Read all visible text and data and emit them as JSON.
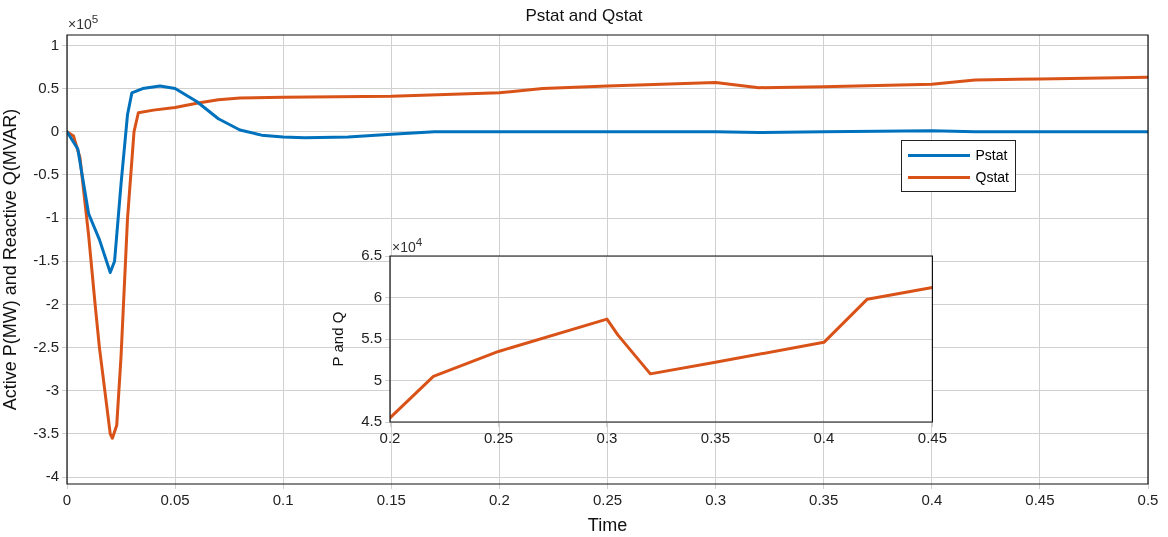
{
  "chart_data": [
    {
      "type": "line",
      "title": "Pstat and Qstat",
      "xlabel": "Time",
      "ylabel": "Active P(MW) and Reactive Q(MVAR)",
      "annotations": [
        "×10$^{5}$"
      ],
      "xlim": [
        0,
        0.5
      ],
      "xticks": [
        0,
        0.05,
        0.1,
        0.15,
        0.2,
        0.25,
        0.3,
        0.35,
        0.4,
        0.45,
        0.5
      ],
      "ylim": [
        -4.08,
        1.12
      ],
      "yticks": [
        -4,
        -3.5,
        -3,
        -2.5,
        -2,
        -1.5,
        -1,
        -0.5,
        0,
        0.5,
        1
      ],
      "grid": true,
      "legend": "right",
      "marker": "none",
      "line_style": "solid",
      "series": [
        {
          "name": "Pstat",
          "color": "#0072bd",
          "x": [
            0,
            0.005,
            0.01,
            0.015,
            0.02,
            0.022,
            0.025,
            0.028,
            0.03,
            0.035,
            0.043,
            0.05,
            0.06,
            0.07,
            0.08,
            0.09,
            0.1,
            0.11,
            0.13,
            0.15,
            0.17,
            0.2,
            0.25,
            0.3,
            0.32,
            0.35,
            0.4,
            0.42,
            0.5
          ],
          "values": [
            0,
            -0.2,
            -0.95,
            -1.25,
            -1.63,
            -1.5,
            -0.6,
            0.2,
            0.45,
            0.5,
            0.53,
            0.5,
            0.35,
            0.15,
            0.02,
            -0.04,
            -0.06,
            -0.07,
            -0.06,
            -0.03,
            0,
            0,
            0,
            0,
            -0.01,
            0,
            0.01,
            0,
            0
          ]
        },
        {
          "name": "Qstat",
          "color": "#d95319",
          "x": [
            0,
            0.003,
            0.006,
            0.01,
            0.013,
            0.015,
            0.018,
            0.02,
            0.021,
            0.023,
            0.025,
            0.028,
            0.031,
            0.033,
            0.04,
            0.05,
            0.06,
            0.07,
            0.08,
            0.1,
            0.15,
            0.2,
            0.22,
            0.25,
            0.3,
            0.32,
            0.35,
            0.4,
            0.42,
            0.45,
            0.5
          ],
          "values": [
            0,
            -0.05,
            -0.3,
            -1.2,
            -2.0,
            -2.5,
            -3.1,
            -3.5,
            -3.55,
            -3.4,
            -2.6,
            -1.0,
            0,
            0.22,
            0.25,
            0.28,
            0.33,
            0.37,
            0.39,
            0.4,
            0.41,
            0.45,
            0.5,
            0.53,
            0.57,
            0.51,
            0.52,
            0.55,
            0.6,
            0.61,
            0.63
          ]
        }
      ]
    },
    {
      "type": "line",
      "ylabel": "P and Q",
      "annotations": [
        "×10$^{4}$"
      ],
      "xlim": [
        0.2,
        0.45
      ],
      "xticks": [
        0.2,
        0.25,
        0.3,
        0.35,
        0.4,
        0.45
      ],
      "ylim": [
        4.5,
        6.5
      ],
      "yticks": [
        4.5,
        5,
        5.5,
        6,
        6.5
      ],
      "grid": true,
      "marker": "none",
      "line_style": "solid",
      "series": [
        {
          "color": "#d95319",
          "x": [
            0.2,
            0.21,
            0.22,
            0.25,
            0.3,
            0.305,
            0.32,
            0.35,
            0.4,
            0.42,
            0.45
          ],
          "values": [
            4.55,
            4.8,
            5.05,
            5.35,
            5.74,
            5.55,
            5.08,
            5.22,
            5.46,
            5.98,
            6.12
          ]
        }
      ]
    }
  ]
}
